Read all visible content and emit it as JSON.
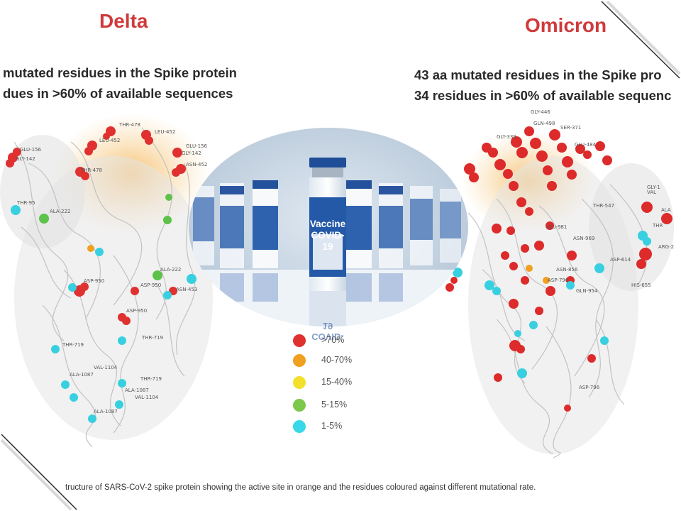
{
  "left_panel": {
    "title": "Delta",
    "line1": "mutated residues in the Spike protein",
    "line2": "dues in >60% of available sequences",
    "residue_labels": [
      "THR-478",
      "LEU-452",
      "LEU-452",
      "GLU-156",
      "GLU-156",
      "GLY-142",
      "GLY-142",
      "ASN-452",
      "THR-478",
      "THR-95",
      "ALA-222",
      "ALA-222",
      "ASP-950",
      "ASP-950",
      "ASN-453",
      "ASP-950",
      "THR-719",
      "THR-719",
      "THR-719",
      "VAL-1104",
      "ALA-1087",
      "ALA-1087",
      "VAL-1104",
      "ALA-1087"
    ]
  },
  "right_panel": {
    "title": "Omicron",
    "line1": "43 aa mutated residues in the Spike pro",
    "line2": "34 residues in >60% of available sequenc",
    "residue_labels": [
      "GLY-446",
      "GLN-498",
      "SER-371",
      "GLY-339",
      "GLU-484",
      "THR-547",
      "GLY-1",
      "VAL",
      "ALA",
      "THR",
      "LEU-981",
      "ASN-969",
      "ARG-2",
      "ASP-614",
      "ASN-856",
      "ASP-796",
      "GLN-954",
      "HIS-655",
      "ASP-796"
    ]
  },
  "vial": {
    "label_line1": "Vaccine",
    "label_line2": "COVID-19",
    "reflection": "COVID-19"
  },
  "legend": [
    {
      "label": ">70%",
      "color": "#e03030"
    },
    {
      "label": "40-70%",
      "color": "#f0a020"
    },
    {
      "label": "15-40%",
      "color": "#f2e02a"
    },
    {
      "label": "5-15%",
      "color": "#7cc84a"
    },
    {
      "label": "1-5%",
      "color": "#38d8e8"
    }
  ],
  "caption": "tructure of SARS-CoV-2 spike protein showing the active site in orange and the residues coloured against different mutational rate."
}
